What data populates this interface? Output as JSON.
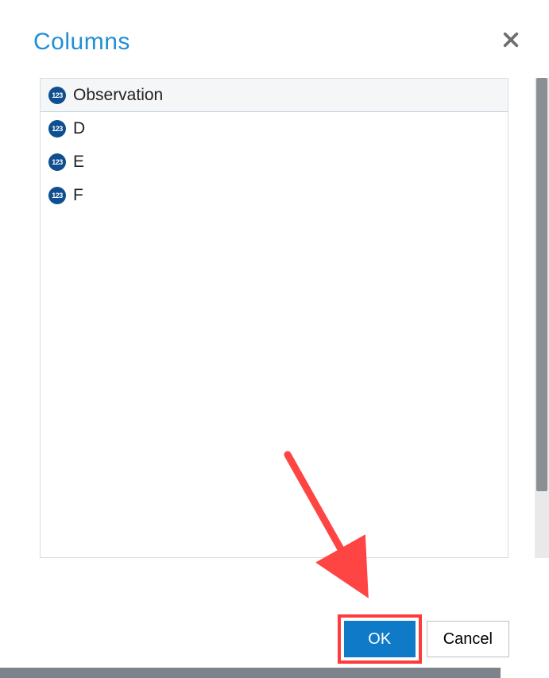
{
  "dialog": {
    "title": "Columns",
    "title_color": "#1f8fd6",
    "close_icon_color": "#6e6e6e"
  },
  "columns": {
    "icon_bg": "#0f4f8f",
    "icon_text": "123",
    "items": [
      {
        "label": "Observation",
        "selected": true
      },
      {
        "label": "D",
        "selected": false
      },
      {
        "label": "E",
        "selected": false
      },
      {
        "label": "F",
        "selected": false
      }
    ]
  },
  "buttons": {
    "ok": "OK",
    "cancel": "Cancel",
    "primary_bg": "#0f7ac7",
    "border_color": "#bfbfbf"
  },
  "annotation": {
    "arrow_color": "#ff4444",
    "highlight_color": "#ff3b3b"
  }
}
